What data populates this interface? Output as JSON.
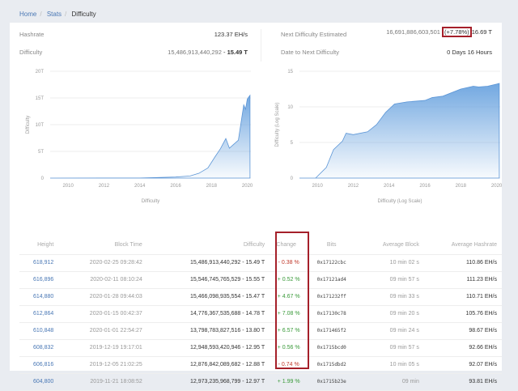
{
  "breadcrumb": {
    "home": "Home",
    "stats": "Stats",
    "current": "Difficulty"
  },
  "stats": {
    "hashrate_label": "Hashrate",
    "hashrate": "123.37 EH/s",
    "difficulty_label": "Difficulty",
    "difficulty_raw": "15,486,913,440,292",
    "difficulty_short": "15.49 T",
    "next_label": "Next Difficulty Estimated",
    "next_raw": "16,691,886,603,501",
    "next_change": "(+7.78%)",
    "next_short": "16.69 T",
    "date_label": "Date to Next Difficulty",
    "date_value": "0 Days 16 Hours"
  },
  "colors": {
    "accent": "#4a78b5",
    "positive": "#3a9a3a",
    "negative": "#c0392b",
    "highlight": "#a5202a",
    "area": "#6aa3df"
  },
  "chart_data": [
    {
      "type": "area",
      "xlabel": "Difficulty",
      "ylabel": "Difficulty",
      "ylim": [
        0,
        20
      ],
      "xlim": [
        2009,
        2020.2
      ],
      "yticks": [
        "0",
        "5T",
        "10T",
        "15T",
        "20T"
      ],
      "xticks": [
        "2010",
        "2012",
        "2014",
        "2016",
        "2018",
        "2020"
      ],
      "grid": true,
      "x": [
        2009,
        2014,
        2016,
        2016.8,
        2017.3,
        2017.8,
        2018.2,
        2018.5,
        2018.8,
        2019.0,
        2019.2,
        2019.5,
        2019.8,
        2019.9,
        2020.0,
        2020.15
      ],
      "values": [
        0,
        0.01,
        0.2,
        0.4,
        0.9,
        1.9,
        4,
        5.5,
        7.4,
        5.6,
        6.2,
        7.1,
        13.7,
        12.9,
        14.8,
        15.5
      ]
    },
    {
      "type": "area",
      "xlabel": "Difficulty (Log Scale)",
      "ylabel": "Difficulty (Log Scale)",
      "ylim": [
        0,
        15
      ],
      "xlim": [
        2009,
        2020.2
      ],
      "yticks": [
        "0",
        "5",
        "10",
        "15"
      ],
      "xticks": [
        "2010",
        "2012",
        "2014",
        "2016",
        "2018",
        "2020"
      ],
      "grid": true,
      "x": [
        2009,
        2009.9,
        2010.5,
        2010.9,
        2011.4,
        2011.6,
        2012,
        2012.8,
        2013.3,
        2013.8,
        2014.3,
        2015,
        2016,
        2016.4,
        2017,
        2018,
        2018.7,
        2019,
        2019.5,
        2020,
        2020.15
      ],
      "values": [
        0,
        0,
        1.5,
        4,
        5.2,
        6.3,
        6.1,
        6.5,
        7.5,
        9.2,
        10.4,
        10.7,
        10.9,
        11.3,
        11.5,
        12.5,
        12.9,
        12.8,
        12.9,
        13.2,
        13.3
      ]
    }
  ],
  "table": {
    "headers": [
      "Height",
      "Block Time",
      "Difficulty",
      "Change",
      "Bits",
      "Average Block",
      "Average Hashrate"
    ],
    "rows": [
      [
        "618,912",
        "2020-02-25 09:28:42",
        "15,486,913,440,292 - 15.49 T",
        "- 0.38 %",
        "0x17122cbc",
        "10 min 02 s",
        "110.86 EH/s"
      ],
      [
        "616,896",
        "2020-02-11 08:10:24",
        "15,546,745,765,529 - 15.55 T",
        "+ 0.52 %",
        "0x17121ad4",
        "09 min 57 s",
        "111.23 EH/s"
      ],
      [
        "614,880",
        "2020-01-28 09:44:03",
        "15,466,098,935,554 - 15.47 T",
        "+ 4.67 %",
        "0x171232ff",
        "09 min 33 s",
        "110.71 EH/s"
      ],
      [
        "612,864",
        "2020-01-15 00:42:37",
        "14,776,367,535,688 - 14.78 T",
        "+ 7.08 %",
        "0x17130c78",
        "09 min 20 s",
        "105.76 EH/s"
      ],
      [
        "610,848",
        "2020-01-01 22:54:27",
        "13,798,783,827,516 - 13.80 T",
        "+ 6.57 %",
        "0x171465f2",
        "09 min 24 s",
        "98.67 EH/s"
      ],
      [
        "608,832",
        "2019-12-19 19:17:01",
        "12,948,593,420,946 - 12.95 T",
        "+ 0.56 %",
        "0x1715bcd0",
        "09 min 57 s",
        "92.66 EH/s"
      ],
      [
        "606,816",
        "2019-12-05 21:02:25",
        "12,876,842,089,682 - 12.88 T",
        "- 0.74 %",
        "0x1715dbd2",
        "10 min 05 s",
        "92.07 EH/s"
      ],
      [
        "604,800",
        "2019-11-21 18:08:52",
        "12,973,235,968,799 - 12.97 T",
        "+ 1.99 %",
        "0x1715b23e",
        "09 min",
        "93.81 EH/s"
      ]
    ]
  }
}
